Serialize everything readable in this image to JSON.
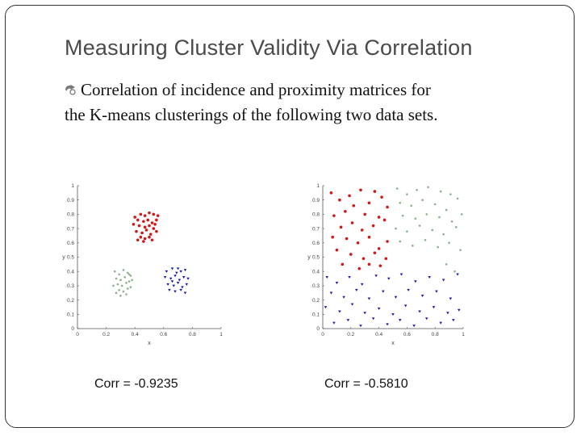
{
  "slide": {
    "title": "Measuring Cluster Validity Via Correlation",
    "bullet_line1": "Correlation of incidence and proximity matrices for",
    "bullet_line2": "the K-means clusterings of the following two data sets.",
    "colors": {
      "red": "#d01818",
      "green": "#8ab08a",
      "blue": "#1a1aa8",
      "border": "#333333"
    }
  },
  "chart_data": [
    {
      "type": "scatter",
      "title": "",
      "xlabel": "x",
      "ylabel": "y",
      "xlim": [
        0,
        1
      ],
      "ylim": [
        0,
        1
      ],
      "xticks": [
        "0",
        "0.2",
        "0.4",
        "0.6",
        "0.8",
        "1"
      ],
      "yticks": [
        "0",
        "0.1",
        "0.2",
        "0.3",
        "0.4",
        "0.5",
        "0.6",
        "0.7",
        "0.8",
        "0.9",
        "1"
      ],
      "caption": "Corr = -0.9235",
      "series": [
        {
          "name": "cluster-red",
          "color": "#d01818",
          "marker": "dot",
          "points": [
            [
              0.4,
              0.78
            ],
            [
              0.44,
              0.8
            ],
            [
              0.47,
              0.79
            ],
            [
              0.5,
              0.81
            ],
            [
              0.53,
              0.8
            ],
            [
              0.56,
              0.79
            ],
            [
              0.42,
              0.76
            ],
            [
              0.46,
              0.75
            ],
            [
              0.49,
              0.76
            ],
            [
              0.52,
              0.74
            ],
            [
              0.55,
              0.76
            ],
            [
              0.43,
              0.72
            ],
            [
              0.47,
              0.71
            ],
            [
              0.5,
              0.72
            ],
            [
              0.53,
              0.7
            ],
            [
              0.41,
              0.68
            ],
            [
              0.45,
              0.67
            ],
            [
              0.48,
              0.69
            ],
            [
              0.51,
              0.66
            ],
            [
              0.44,
              0.64
            ],
            [
              0.47,
              0.63
            ],
            [
              0.5,
              0.64
            ],
            [
              0.46,
              0.61
            ],
            [
              0.52,
              0.62
            ],
            [
              0.54,
              0.73
            ],
            [
              0.39,
              0.73
            ],
            [
              0.55,
              0.68
            ],
            [
              0.42,
              0.62
            ]
          ]
        },
        {
          "name": "cluster-green",
          "color": "#8ab08a",
          "marker": "dot",
          "points": [
            [
              0.26,
              0.4
            ],
            [
              0.29,
              0.38
            ],
            [
              0.32,
              0.41
            ],
            [
              0.35,
              0.39
            ],
            [
              0.37,
              0.37
            ],
            [
              0.27,
              0.35
            ],
            [
              0.3,
              0.34
            ],
            [
              0.33,
              0.36
            ],
            [
              0.36,
              0.33
            ],
            [
              0.28,
              0.31
            ],
            [
              0.31,
              0.3
            ],
            [
              0.34,
              0.32
            ],
            [
              0.37,
              0.29
            ],
            [
              0.29,
              0.27
            ],
            [
              0.32,
              0.26
            ],
            [
              0.35,
              0.28
            ],
            [
              0.25,
              0.3
            ],
            [
              0.38,
              0.34
            ],
            [
              0.3,
              0.23
            ],
            [
              0.34,
              0.24
            ],
            [
              0.27,
              0.25
            ],
            [
              0.36,
              0.38
            ]
          ]
        },
        {
          "name": "cluster-blue",
          "color": "#1a1aa8",
          "marker": "triangle",
          "points": [
            [
              0.62,
              0.4
            ],
            [
              0.66,
              0.42
            ],
            [
              0.69,
              0.39
            ],
            [
              0.72,
              0.4
            ],
            [
              0.75,
              0.41
            ],
            [
              0.61,
              0.36
            ],
            [
              0.65,
              0.35
            ],
            [
              0.68,
              0.37
            ],
            [
              0.71,
              0.34
            ],
            [
              0.74,
              0.36
            ],
            [
              0.77,
              0.35
            ],
            [
              0.63,
              0.31
            ],
            [
              0.67,
              0.3
            ],
            [
              0.7,
              0.32
            ],
            [
              0.73,
              0.29
            ],
            [
              0.76,
              0.31
            ],
            [
              0.64,
              0.27
            ],
            [
              0.68,
              0.26
            ],
            [
              0.72,
              0.27
            ],
            [
              0.75,
              0.25
            ],
            [
              0.66,
              0.33
            ],
            [
              0.7,
              0.42
            ]
          ]
        }
      ]
    },
    {
      "type": "scatter",
      "title": "",
      "xlabel": "x",
      "ylabel": "y",
      "xlim": [
        0,
        1
      ],
      "ylim": [
        0,
        1
      ],
      "xticks": [
        "0",
        "0.2",
        "0.4",
        "0.6",
        "0.8",
        "1"
      ],
      "yticks": [
        "0",
        "0.1",
        "0.2",
        "0.3",
        "0.4",
        "0.5",
        "0.6",
        "0.7",
        "0.8",
        "0.9",
        "1"
      ],
      "caption": "Corr = -0.5810",
      "series": [
        {
          "name": "cluster-red",
          "color": "#d01818",
          "marker": "dot",
          "points": [
            [
              0.06,
              0.95
            ],
            [
              0.12,
              0.9
            ],
            [
              0.19,
              0.93
            ],
            [
              0.27,
              0.97
            ],
            [
              0.33,
              0.88
            ],
            [
              0.37,
              0.96
            ],
            [
              0.42,
              0.92
            ],
            [
              0.46,
              0.85
            ],
            [
              0.22,
              0.86
            ],
            [
              0.08,
              0.79
            ],
            [
              0.16,
              0.82
            ],
            [
              0.3,
              0.8
            ],
            [
              0.4,
              0.78
            ],
            [
              0.13,
              0.71
            ],
            [
              0.21,
              0.74
            ],
            [
              0.28,
              0.69
            ],
            [
              0.36,
              0.72
            ],
            [
              0.44,
              0.76
            ],
            [
              0.07,
              0.64
            ],
            [
              0.17,
              0.63
            ],
            [
              0.25,
              0.6
            ],
            [
              0.33,
              0.64
            ],
            [
              0.4,
              0.56
            ],
            [
              0.46,
              0.61
            ],
            [
              0.1,
              0.55
            ],
            [
              0.2,
              0.52
            ],
            [
              0.29,
              0.49
            ],
            [
              0.37,
              0.53
            ],
            [
              0.45,
              0.49
            ],
            [
              0.14,
              0.45
            ],
            [
              0.26,
              0.42
            ],
            [
              0.33,
              0.45
            ],
            [
              0.41,
              0.44
            ]
          ]
        },
        {
          "name": "cluster-green",
          "color": "#8ab08a",
          "marker": "dot",
          "points": [
            [
              0.53,
              0.98
            ],
            [
              0.6,
              0.94
            ],
            [
              0.67,
              0.97
            ],
            [
              0.75,
              0.99
            ],
            [
              0.84,
              0.96
            ],
            [
              0.91,
              0.94
            ],
            [
              0.55,
              0.88
            ],
            [
              0.63,
              0.86
            ],
            [
              0.71,
              0.9
            ],
            [
              0.8,
              0.87
            ],
            [
              0.88,
              0.83
            ],
            [
              0.96,
              0.91
            ],
            [
              0.57,
              0.79
            ],
            [
              0.66,
              0.77
            ],
            [
              0.74,
              0.8
            ],
            [
              0.83,
              0.78
            ],
            [
              0.92,
              0.75
            ],
            [
              0.99,
              0.8
            ],
            [
              0.52,
              0.7
            ],
            [
              0.6,
              0.68
            ],
            [
              0.69,
              0.72
            ],
            [
              0.78,
              0.69
            ],
            [
              0.86,
              0.66
            ],
            [
              0.95,
              0.71
            ],
            [
              0.55,
              0.61
            ],
            [
              0.64,
              0.58
            ],
            [
              0.73,
              0.62
            ],
            [
              0.82,
              0.57
            ],
            [
              0.9,
              0.6
            ],
            [
              0.98,
              0.55
            ],
            [
              0.88,
              0.45
            ],
            [
              0.94,
              0.4
            ]
          ]
        },
        {
          "name": "cluster-blue",
          "color": "#1a1aa8",
          "marker": "triangle",
          "points": [
            [
              0.03,
              0.36
            ],
            [
              0.1,
              0.32
            ],
            [
              0.19,
              0.36
            ],
            [
              0.28,
              0.31
            ],
            [
              0.38,
              0.37
            ],
            [
              0.47,
              0.35
            ],
            [
              0.56,
              0.38
            ],
            [
              0.66,
              0.33
            ],
            [
              0.76,
              0.36
            ],
            [
              0.86,
              0.34
            ],
            [
              0.96,
              0.38
            ],
            [
              0.06,
              0.25
            ],
            [
              0.15,
              0.22
            ],
            [
              0.24,
              0.27
            ],
            [
              0.33,
              0.21
            ],
            [
              0.43,
              0.26
            ],
            [
              0.52,
              0.22
            ],
            [
              0.61,
              0.27
            ],
            [
              0.71,
              0.23
            ],
            [
              0.81,
              0.26
            ],
            [
              0.91,
              0.21
            ],
            [
              0.02,
              0.15
            ],
            [
              0.12,
              0.12
            ],
            [
              0.21,
              0.17
            ],
            [
              0.3,
              0.11
            ],
            [
              0.4,
              0.14
            ],
            [
              0.5,
              0.1
            ],
            [
              0.59,
              0.16
            ],
            [
              0.69,
              0.12
            ],
            [
              0.79,
              0.15
            ],
            [
              0.89,
              0.11
            ],
            [
              0.97,
              0.13
            ],
            [
              0.08,
              0.04
            ],
            [
              0.18,
              0.06
            ],
            [
              0.27,
              0.02
            ],
            [
              0.36,
              0.07
            ],
            [
              0.46,
              0.03
            ],
            [
              0.55,
              0.06
            ],
            [
              0.65,
              0.02
            ],
            [
              0.74,
              0.07
            ],
            [
              0.84,
              0.04
            ],
            [
              0.93,
              0.06
            ]
          ]
        }
      ]
    }
  ]
}
